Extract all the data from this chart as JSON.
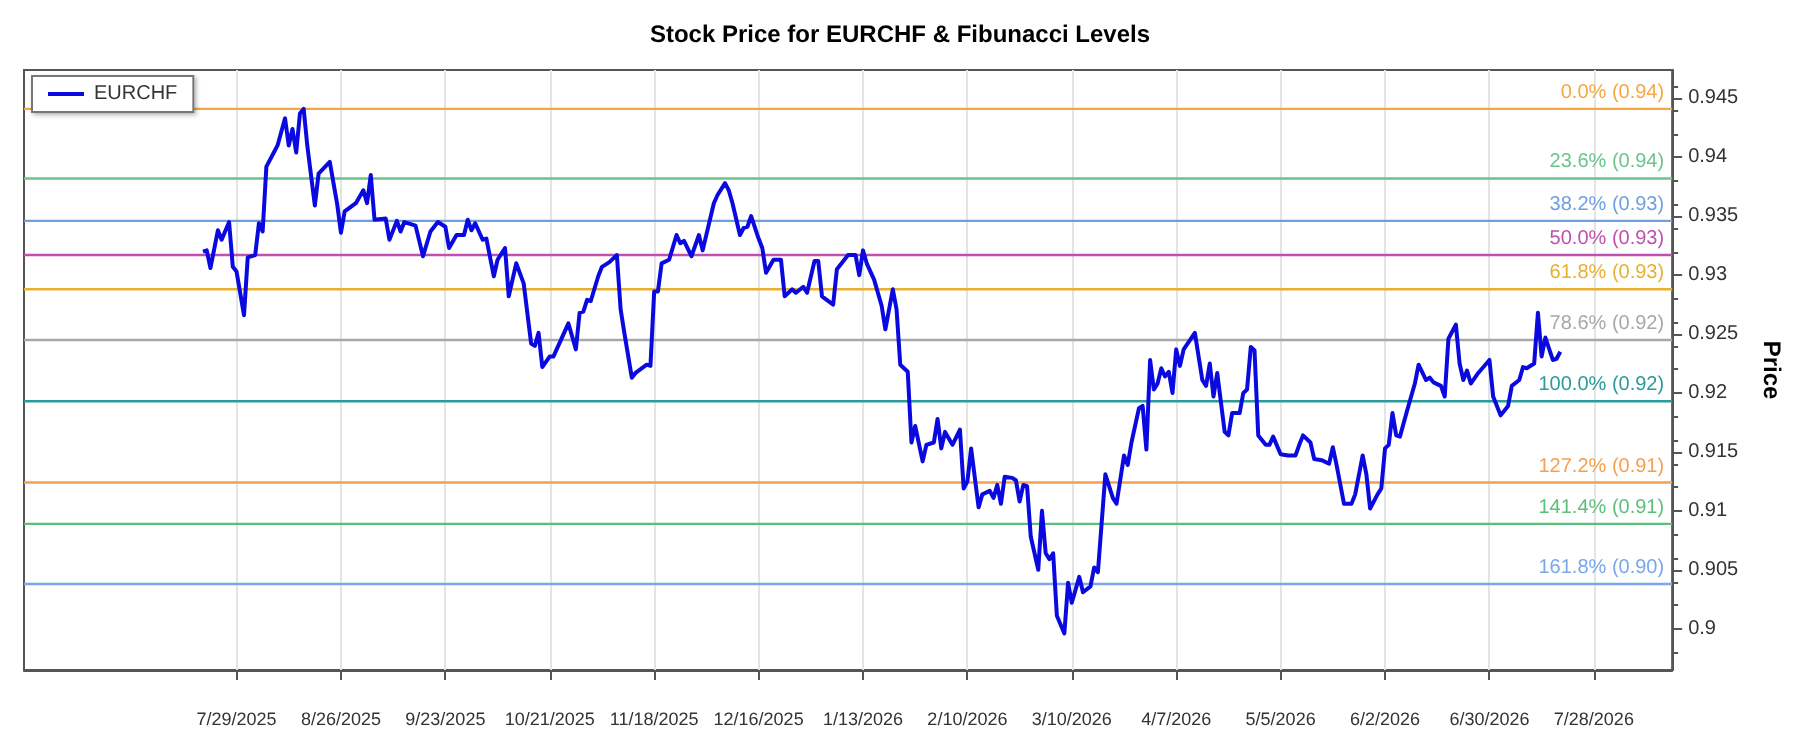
{
  "chart_data": {
    "type": "line",
    "title": "Stock Price for EURCHF & Fibunacci Levels",
    "ylabel": "Price",
    "x": [
      "2025-07-20",
      "2025-07-21",
      "2025-07-22",
      "2025-07-24",
      "2025-07-25",
      "2025-07-27",
      "2025-07-28",
      "2025-07-29",
      "2025-07-31",
      "2025-08-01",
      "2025-08-03",
      "2025-08-04",
      "2025-08-05",
      "2025-08-06",
      "2025-08-08",
      "2025-08-09",
      "2025-08-11",
      "2025-08-12",
      "2025-08-13",
      "2025-08-14",
      "2025-08-15",
      "2025-08-16",
      "2025-08-17",
      "2025-08-19",
      "2025-08-20",
      "2025-08-23",
      "2025-08-25",
      "2025-08-26",
      "2025-08-27",
      "2025-08-30",
      "2025-09-01",
      "2025-09-02",
      "2025-09-03",
      "2025-09-04",
      "2025-09-07",
      "2025-09-08",
      "2025-09-10",
      "2025-09-11",
      "2025-09-12",
      "2025-09-15",
      "2025-09-17",
      "2025-09-19",
      "2025-09-21",
      "2025-09-23",
      "2025-09-24",
      "2025-09-26",
      "2025-09-28",
      "2025-09-29",
      "2025-09-30",
      "2025-10-01",
      "2025-10-03",
      "2025-10-04",
      "2025-10-06",
      "2025-10-07",
      "2025-10-09",
      "2025-10-10",
      "2025-10-12",
      "2025-10-14",
      "2025-10-16",
      "2025-10-17",
      "2025-10-18",
      "2025-10-19",
      "2025-10-21",
      "2025-10-22",
      "2025-10-26",
      "2025-10-28",
      "2025-10-29",
      "2025-10-30",
      "2025-10-31",
      "2025-11-01",
      "2025-11-03",
      "2025-11-04",
      "2025-11-06",
      "2025-11-08",
      "2025-11-09",
      "2025-11-10",
      "2025-11-12",
      "2025-11-13",
      "2025-11-16",
      "2025-11-17",
      "2025-11-18",
      "2025-11-19",
      "2025-11-20",
      "2025-11-22",
      "2025-11-24",
      "2025-11-25",
      "2025-11-26",
      "2025-11-28",
      "2025-11-30",
      "2025-12-01",
      "2025-12-04",
      "2025-12-05",
      "2025-12-07",
      "2025-12-08",
      "2025-12-09",
      "2025-12-11",
      "2025-12-12",
      "2025-12-13",
      "2025-12-14",
      "2025-12-16",
      "2025-12-17",
      "2025-12-18",
      "2025-12-20",
      "2025-12-22",
      "2025-12-23",
      "2025-12-25",
      "2025-12-26",
      "2025-12-28",
      "2025-12-29",
      "2025-12-31",
      "2026-01-01",
      "2026-01-02",
      "2026-01-05",
      "2026-01-06",
      "2026-01-09",
      "2026-01-11",
      "2026-01-12",
      "2026-01-13",
      "2026-01-14",
      "2026-01-16",
      "2026-01-18",
      "2026-01-19",
      "2026-01-21",
      "2026-01-22",
      "2026-01-23",
      "2026-01-25",
      "2026-01-26",
      "2026-01-27",
      "2026-01-29",
      "2026-01-30",
      "2026-02-01",
      "2026-02-02",
      "2026-02-03",
      "2026-02-04",
      "2026-02-06",
      "2026-02-08",
      "2026-02-09",
      "2026-02-10",
      "2026-02-11",
      "2026-02-13",
      "2026-02-14",
      "2026-02-16",
      "2026-02-17",
      "2026-02-18",
      "2026-02-19",
      "2026-02-20",
      "2026-02-22",
      "2026-02-23",
      "2026-02-24",
      "2026-02-25",
      "2026-02-26",
      "2026-02-27",
      "2026-03-01",
      "2026-03-02",
      "2026-03-03",
      "2026-03-04",
      "2026-03-05",
      "2026-03-06",
      "2026-03-08",
      "2026-03-09",
      "2026-03-10",
      "2026-03-12",
      "2026-03-13",
      "2026-03-15",
      "2026-03-16",
      "2026-03-17",
      "2026-03-19",
      "2026-03-21",
      "2026-03-22",
      "2026-03-24",
      "2026-03-25",
      "2026-03-26",
      "2026-03-28",
      "2026-03-29",
      "2026-03-30",
      "2026-03-31",
      "2026-04-01",
      "2026-04-02",
      "2026-04-03",
      "2026-04-04",
      "2026-04-05",
      "2026-04-06",
      "2026-04-07",
      "2026-04-08",
      "2026-04-09",
      "2026-04-12",
      "2026-04-14",
      "2026-04-15",
      "2026-04-16",
      "2026-04-17",
      "2026-04-18",
      "2026-04-20",
      "2026-04-21",
      "2026-04-22",
      "2026-04-24",
      "2026-04-25",
      "2026-04-26",
      "2026-04-27",
      "2026-04-28",
      "2026-04-29",
      "2026-05-01",
      "2026-05-02",
      "2026-05-03",
      "2026-05-05",
      "2026-05-07",
      "2026-05-09",
      "2026-05-10",
      "2026-05-11",
      "2026-05-13",
      "2026-05-14",
      "2026-05-16",
      "2026-05-18",
      "2026-05-19",
      "2026-05-20",
      "2026-05-22",
      "2026-05-24",
      "2026-05-25",
      "2026-05-27",
      "2026-05-28",
      "2026-05-29",
      "2026-05-31",
      "2026-06-01",
      "2026-06-02",
      "2026-06-03",
      "2026-06-04",
      "2026-06-05",
      "2026-06-06",
      "2026-06-08",
      "2026-06-10",
      "2026-06-11",
      "2026-06-13",
      "2026-06-14",
      "2026-06-15",
      "2026-06-17",
      "2026-06-18",
      "2026-06-19",
      "2026-06-21",
      "2026-06-22",
      "2026-06-23",
      "2026-06-24",
      "2026-06-25",
      "2026-06-27",
      "2026-06-30",
      "2026-07-01",
      "2026-07-03",
      "2026-07-05",
      "2026-07-06",
      "2026-07-08",
      "2026-07-09",
      "2026-07-10",
      "2026-07-12",
      "2026-07-13",
      "2026-07-14",
      "2026-07-15",
      "2026-07-17",
      "2026-07-18",
      "2026-07-19"
    ],
    "series": [
      {
        "name": "EURCHF",
        "color": "#0a0ae0",
        "values": [
          0.932,
          0.9321,
          0.9306,
          0.9338,
          0.933,
          0.9345,
          0.9307,
          0.9303,
          0.9266,
          0.9315,
          0.9317,
          0.9344,
          0.9337,
          0.9392,
          0.9404,
          0.941,
          0.9433,
          0.941,
          0.9424,
          0.9404,
          0.9437,
          0.9441,
          0.9409,
          0.9359,
          0.9386,
          0.9396,
          0.936,
          0.9336,
          0.9354,
          0.9361,
          0.9372,
          0.9361,
          0.9385,
          0.9347,
          0.9348,
          0.933,
          0.9346,
          0.9337,
          0.9345,
          0.9342,
          0.9316,
          0.9337,
          0.9345,
          0.9341,
          0.9323,
          0.9334,
          0.9334,
          0.9347,
          0.9338,
          0.9344,
          0.933,
          0.9331,
          0.9299,
          0.9313,
          0.9323,
          0.9282,
          0.931,
          0.9293,
          0.9242,
          0.924,
          0.9251,
          0.9222,
          0.9231,
          0.9231,
          0.9259,
          0.9237,
          0.9268,
          0.9269,
          0.9279,
          0.9278,
          0.9299,
          0.9307,
          0.9311,
          0.9317,
          0.9271,
          0.9251,
          0.9213,
          0.9217,
          0.9224,
          0.9223,
          0.9286,
          0.9286,
          0.931,
          0.9313,
          0.9334,
          0.9327,
          0.9329,
          0.9316,
          0.9334,
          0.9321,
          0.9361,
          0.9368,
          0.9378,
          0.9372,
          0.9361,
          0.9334,
          0.934,
          0.9341,
          0.935,
          0.9331,
          0.9323,
          0.9302,
          0.9313,
          0.9313,
          0.9282,
          0.9288,
          0.9285,
          0.929,
          0.9285,
          0.9312,
          0.9312,
          0.9282,
          0.9275,
          0.9305,
          0.9317,
          0.9317,
          0.93,
          0.9321,
          0.931,
          0.9296,
          0.9274,
          0.9254,
          0.9288,
          0.9271,
          0.9224,
          0.9218,
          0.9158,
          0.9172,
          0.9142,
          0.9156,
          0.9158,
          0.9178,
          0.9153,
          0.9167,
          0.9156,
          0.9169,
          0.9119,
          0.9125,
          0.9153,
          0.9103,
          0.9114,
          0.9117,
          0.9111,
          0.9122,
          0.9106,
          0.9129,
          0.9128,
          0.9126,
          0.9108,
          0.9122,
          0.9121,
          0.9078,
          0.905,
          0.91,
          0.9064,
          0.9059,
          0.9064,
          0.9011,
          0.8996,
          0.9039,
          0.9022,
          0.9044,
          0.9031,
          0.9036,
          0.9052,
          0.9048,
          0.9131,
          0.9111,
          0.9106,
          0.9147,
          0.9139,
          0.9158,
          0.9187,
          0.9189,
          0.9152,
          0.9228,
          0.9203,
          0.9208,
          0.9221,
          0.9214,
          0.9218,
          0.92,
          0.9237,
          0.9223,
          0.9237,
          0.9251,
          0.9211,
          0.9206,
          0.9225,
          0.9197,
          0.9217,
          0.9167,
          0.9164,
          0.9183,
          0.9183,
          0.92,
          0.9203,
          0.9239,
          0.9236,
          0.9164,
          0.9156,
          0.9156,
          0.9163,
          0.9148,
          0.9147,
          0.9147,
          0.9156,
          0.9164,
          0.9158,
          0.9144,
          0.9143,
          0.914,
          0.9154,
          0.9139,
          0.9106,
          0.9106,
          0.9114,
          0.9147,
          0.9131,
          0.9102,
          0.9114,
          0.9119,
          0.9153,
          0.9156,
          0.9183,
          0.9164,
          0.9163,
          0.9186,
          0.9208,
          0.9224,
          0.9211,
          0.9213,
          0.9209,
          0.9206,
          0.9197,
          0.9246,
          0.9258,
          0.9225,
          0.9211,
          0.9219,
          0.9208,
          0.9217,
          0.9228,
          0.9197,
          0.9181,
          0.9189,
          0.9206,
          0.9211,
          0.9222,
          0.9221,
          0.9225,
          0.9268,
          0.9231,
          0.9247,
          0.9228,
          0.9229,
          0.9235
        ]
      }
    ],
    "xlim": [
      "2025-06-02",
      "2026-08-18"
    ],
    "xticks": [
      {
        "value": "2025-07-29",
        "label": "7/29/2025"
      },
      {
        "value": "2025-08-26",
        "label": "8/26/2025"
      },
      {
        "value": "2025-09-23",
        "label": "9/23/2025"
      },
      {
        "value": "2025-10-21",
        "label": "10/21/2025"
      },
      {
        "value": "2025-11-18",
        "label": "11/18/2025"
      },
      {
        "value": "2025-12-16",
        "label": "12/16/2025"
      },
      {
        "value": "2026-01-13",
        "label": "1/13/2026"
      },
      {
        "value": "2026-02-10",
        "label": "2/10/2026"
      },
      {
        "value": "2026-03-10",
        "label": "3/10/2026"
      },
      {
        "value": "2026-04-07",
        "label": "4/7/2026"
      },
      {
        "value": "2026-05-05",
        "label": "5/5/2026"
      },
      {
        "value": "2026-06-02",
        "label": "6/2/2026"
      },
      {
        "value": "2026-06-30",
        "label": "6/30/2026"
      },
      {
        "value": "2026-07-28",
        "label": "7/28/2026"
      }
    ],
    "ylim": [
      0.8965,
      0.9474
    ],
    "yticks": [
      0.9,
      0.905,
      0.91,
      0.915,
      0.92,
      0.925,
      0.93,
      0.935,
      0.94,
      0.945
    ],
    "ref_lines": [
      {
        "axis": "y",
        "value": 0.9441,
        "label": "0.0% (0.94)",
        "color": "#f5a742"
      },
      {
        "axis": "y",
        "value": 0.9382,
        "label": "23.6% (0.94)",
        "color": "#6cc48a"
      },
      {
        "axis": "y",
        "value": 0.9346,
        "label": "38.2% (0.93)",
        "color": "#6f9fe0"
      },
      {
        "axis": "y",
        "value": 0.9317,
        "label": "50.0% (0.93)",
        "color": "#c050b0"
      },
      {
        "axis": "y",
        "value": 0.9288,
        "label": "61.8% (0.93)",
        "color": "#e8b030"
      },
      {
        "axis": "y",
        "value": 0.9245,
        "label": "78.6% (0.92)",
        "color": "#a8a8a8"
      },
      {
        "axis": "y",
        "value": 0.9193,
        "label": "100.0% (0.92)",
        "color": "#2a9a9a"
      },
      {
        "axis": "y",
        "value": 0.9124,
        "label": "127.2% (0.91)",
        "color": "#f5a050"
      },
      {
        "axis": "y",
        "value": 0.9089,
        "label": "141.4% (0.91)",
        "color": "#5cbf7a"
      },
      {
        "axis": "y",
        "value": 0.9038,
        "label": "161.8% (0.90)",
        "color": "#7aa6ea"
      }
    ],
    "grid": "x",
    "legend": "top left",
    "marker": "none",
    "line_style": "solid"
  }
}
